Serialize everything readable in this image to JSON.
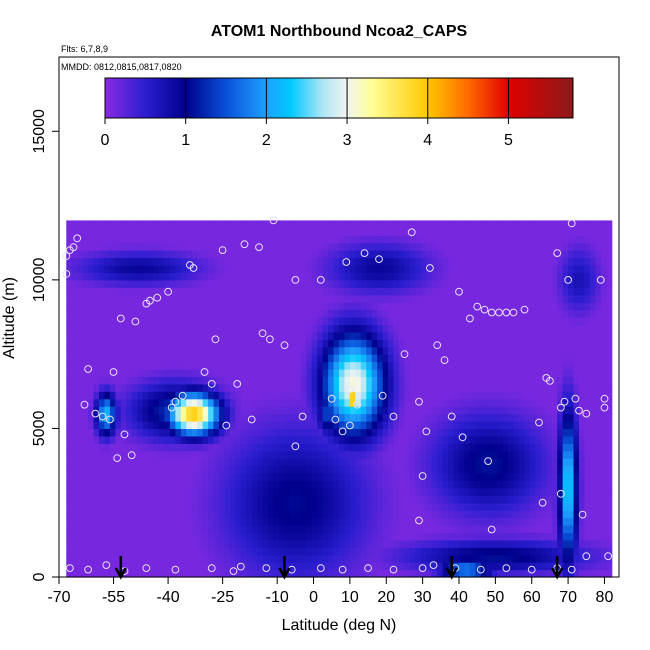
{
  "chart_data": {
    "type": "heatmap",
    "title": "ATOM1 Northbound Ncoa2_CAPS",
    "notes": [
      "Flts: 6,7,8,9",
      "MMDD: 0812,0815,0817,0820"
    ],
    "xlabel": "Latitude (deg N)",
    "ylabel": "Altitude (m)",
    "xlim": [
      -70,
      84
    ],
    "ylim": [
      0,
      17500
    ],
    "x_ticks": [
      -70,
      -55,
      -40,
      -25,
      -10,
      0,
      10,
      20,
      30,
      40,
      50,
      60,
      70,
      80
    ],
    "x_tick_labels": [
      "-70",
      "-55",
      "-40",
      "-25",
      "-10",
      "0",
      "10",
      "20",
      "30",
      "40",
      "50",
      "60",
      "70",
      "80"
    ],
    "y_ticks": [
      0,
      5000,
      10000,
      15000
    ],
    "y_tick_labels": [
      "0",
      "5000",
      "10000",
      "15000"
    ],
    "colorbar": {
      "range": [
        0,
        5.8
      ],
      "ticks": [
        0,
        1,
        2,
        3,
        4,
        5
      ],
      "tick_labels": [
        "0",
        "1",
        "2",
        "3",
        "4",
        "5"
      ],
      "stops": [
        {
          "v": 0.0,
          "c": "#8a2be2"
        },
        {
          "v": 0.5,
          "c": "#2b1ed0"
        },
        {
          "v": 1.0,
          "c": "#00008b"
        },
        {
          "v": 1.5,
          "c": "#0a50d8"
        },
        {
          "v": 2.0,
          "c": "#1ea0ff"
        },
        {
          "v": 2.3,
          "c": "#00c8ff"
        },
        {
          "v": 2.7,
          "c": "#aee6f5"
        },
        {
          "v": 3.0,
          "c": "#f0f4f0"
        },
        {
          "v": 3.3,
          "c": "#ffff99"
        },
        {
          "v": 4.0,
          "c": "#ffc800"
        },
        {
          "v": 4.5,
          "c": "#ff6a00"
        },
        {
          "v": 5.0,
          "c": "#e00000"
        },
        {
          "v": 5.8,
          "c": "#8b1a1a"
        }
      ]
    },
    "background_value": 0.1,
    "field_extent": {
      "lat": [
        -68,
        82
      ],
      "alt": [
        0,
        11800
      ]
    },
    "features": [
      {
        "lat": -33,
        "alt": 5500,
        "slat": 5,
        "salt": 500,
        "v": 4.0
      },
      {
        "lat": -57,
        "alt": 5500,
        "slat": 2,
        "salt": 500,
        "v": 2.2
      },
      {
        "lat": -38,
        "alt": 5600,
        "slat": 9,
        "salt": 700,
        "v": 1.3
      },
      {
        "lat": 11,
        "alt": 6500,
        "slat": 6,
        "salt": 1200,
        "v": 3.1
      },
      {
        "lat": 11,
        "alt": 6000,
        "slat": 1.5,
        "salt": 350,
        "v": 4.2
      },
      {
        "lat": 4,
        "alt": 5500,
        "slat": 2,
        "salt": 500,
        "v": 1.5
      },
      {
        "lat": -5,
        "alt": 2500,
        "slat": 14,
        "salt": 1800,
        "v": 1.05
      },
      {
        "lat": 48,
        "alt": 3800,
        "slat": 11,
        "salt": 1200,
        "v": 1.1
      },
      {
        "lat": 70,
        "alt": 3000,
        "slat": 1.8,
        "salt": 1800,
        "v": 2.4
      },
      {
        "lat": 50,
        "alt": 700,
        "slat": 18,
        "salt": 400,
        "v": 1.1
      },
      {
        "lat": 42,
        "alt": 250,
        "slat": 5,
        "salt": 250,
        "v": 1.9
      },
      {
        "lat": -48,
        "alt": 10400,
        "slat": 12,
        "salt": 400,
        "v": 0.9
      },
      {
        "lat": 18,
        "alt": 10400,
        "slat": 10,
        "salt": 600,
        "v": 0.9
      },
      {
        "lat": 73,
        "alt": 10000,
        "slat": 4,
        "salt": 800,
        "v": 0.7
      }
    ],
    "flight_arrows_lat": [
      -53,
      -8,
      38,
      67
    ],
    "points": [
      {
        "lat": -68,
        "alt": 10800
      },
      {
        "lat": -67,
        "alt": 11000
      },
      {
        "lat": -66,
        "alt": 11100
      },
      {
        "lat": -65,
        "alt": 11400
      },
      {
        "lat": -68,
        "alt": 10200
      },
      {
        "lat": -62,
        "alt": 7000
      },
      {
        "lat": -63,
        "alt": 5800
      },
      {
        "lat": -60,
        "alt": 5500
      },
      {
        "lat": -58,
        "alt": 5400
      },
      {
        "lat": -55,
        "alt": 6900
      },
      {
        "lat": -56,
        "alt": 5300
      },
      {
        "lat": -52,
        "alt": 4800
      },
      {
        "lat": -54,
        "alt": 4000
      },
      {
        "lat": -50,
        "alt": 4100
      },
      {
        "lat": -53,
        "alt": 8700
      },
      {
        "lat": -49,
        "alt": 8600
      },
      {
        "lat": -46,
        "alt": 9200
      },
      {
        "lat": -45,
        "alt": 9300
      },
      {
        "lat": -43,
        "alt": 9400
      },
      {
        "lat": -40,
        "alt": 9600
      },
      {
        "lat": -38,
        "alt": 5900
      },
      {
        "lat": -39,
        "alt": 5700
      },
      {
        "lat": -36,
        "alt": 6100
      },
      {
        "lat": -34,
        "alt": 10500
      },
      {
        "lat": -33,
        "alt": 10400
      },
      {
        "lat": -30,
        "alt": 6900
      },
      {
        "lat": -28,
        "alt": 6500
      },
      {
        "lat": -27,
        "alt": 8000
      },
      {
        "lat": -25,
        "alt": 11000
      },
      {
        "lat": -24,
        "alt": 5100
      },
      {
        "lat": -21,
        "alt": 6500
      },
      {
        "lat": -19,
        "alt": 11200
      },
      {
        "lat": -17,
        "alt": 5300
      },
      {
        "lat": -15,
        "alt": 11100
      },
      {
        "lat": -14,
        "alt": 8200
      },
      {
        "lat": -12,
        "alt": 8000
      },
      {
        "lat": -11,
        "alt": 12000
      },
      {
        "lat": -8,
        "alt": 7800
      },
      {
        "lat": -5,
        "alt": 10000
      },
      {
        "lat": -3,
        "alt": 5400
      },
      {
        "lat": 2,
        "alt": 10000
      },
      {
        "lat": 5,
        "alt": 6000
      },
      {
        "lat": 6,
        "alt": 5300
      },
      {
        "lat": 8,
        "alt": 4900
      },
      {
        "lat": 9,
        "alt": 10600
      },
      {
        "lat": 10,
        "alt": 6300
      },
      {
        "lat": 12,
        "alt": 5800
      },
      {
        "lat": 14,
        "alt": 10900
      },
      {
        "lat": 18,
        "alt": 10700
      },
      {
        "lat": 19,
        "alt": 6100
      },
      {
        "lat": 22,
        "alt": 5400
      },
      {
        "lat": 25,
        "alt": 7500
      },
      {
        "lat": 27,
        "alt": 11600
      },
      {
        "lat": 29,
        "alt": 5900
      },
      {
        "lat": 31,
        "alt": 4900
      },
      {
        "lat": 32,
        "alt": 10400
      },
      {
        "lat": 34,
        "alt": 7800
      },
      {
        "lat": 36,
        "alt": 7300
      },
      {
        "lat": 38,
        "alt": 5400
      },
      {
        "lat": 40,
        "alt": 9600
      },
      {
        "lat": 41,
        "alt": 4700
      },
      {
        "lat": 43,
        "alt": 8700
      },
      {
        "lat": 45,
        "alt": 9100
      },
      {
        "lat": 47,
        "alt": 9000
      },
      {
        "lat": 49,
        "alt": 8900
      },
      {
        "lat": 51,
        "alt": 8900
      },
      {
        "lat": 53,
        "alt": 8900
      },
      {
        "lat": 55,
        "alt": 8900
      },
      {
        "lat": 58,
        "alt": 9000
      },
      {
        "lat": 62,
        "alt": 5200
      },
      {
        "lat": 64,
        "alt": 6700
      },
      {
        "lat": 65,
        "alt": 6600
      },
      {
        "lat": 67,
        "alt": 10900
      },
      {
        "lat": 68,
        "alt": 5700
      },
      {
        "lat": 69,
        "alt": 5900
      },
      {
        "lat": 70,
        "alt": 10000
      },
      {
        "lat": 71,
        "alt": 11900
      },
      {
        "lat": 72,
        "alt": 6000
      },
      {
        "lat": 73,
        "alt": 5600
      },
      {
        "lat": 74,
        "alt": 2100
      },
      {
        "lat": 68,
        "alt": 2800
      },
      {
        "lat": 63,
        "alt": 2500
      },
      {
        "lat": 48,
        "alt": 3900
      },
      {
        "lat": 49,
        "alt": 1600
      },
      {
        "lat": 29,
        "alt": 1900
      },
      {
        "lat": 30,
        "alt": 3400
      },
      {
        "lat": -5,
        "alt": 4400
      },
      {
        "lat": 10,
        "alt": 5100
      },
      {
        "lat": -67,
        "alt": 300
      },
      {
        "lat": -62,
        "alt": 250
      },
      {
        "lat": -57,
        "alt": 400
      },
      {
        "lat": -52,
        "alt": 200
      },
      {
        "lat": -46,
        "alt": 300
      },
      {
        "lat": -38,
        "alt": 250
      },
      {
        "lat": -28,
        "alt": 300
      },
      {
        "lat": -22,
        "alt": 200
      },
      {
        "lat": -20,
        "alt": 350
      },
      {
        "lat": -13,
        "alt": 300
      },
      {
        "lat": -6,
        "alt": 250
      },
      {
        "lat": 2,
        "alt": 300
      },
      {
        "lat": 8,
        "alt": 250
      },
      {
        "lat": 15,
        "alt": 300
      },
      {
        "lat": 22,
        "alt": 250
      },
      {
        "lat": 30,
        "alt": 300
      },
      {
        "lat": 33,
        "alt": 400
      },
      {
        "lat": 39,
        "alt": 300
      },
      {
        "lat": 46,
        "alt": 250
      },
      {
        "lat": 53,
        "alt": 300
      },
      {
        "lat": 60,
        "alt": 250
      },
      {
        "lat": 67,
        "alt": 300
      },
      {
        "lat": 71,
        "alt": 250
      },
      {
        "lat": 75,
        "alt": 700
      },
      {
        "lat": 81,
        "alt": 700
      },
      {
        "lat": 80,
        "alt": 6000
      },
      {
        "lat": 80,
        "alt": 5700
      },
      {
        "lat": 79,
        "alt": 10000
      },
      {
        "lat": 75,
        "alt": 5500
      }
    ]
  }
}
